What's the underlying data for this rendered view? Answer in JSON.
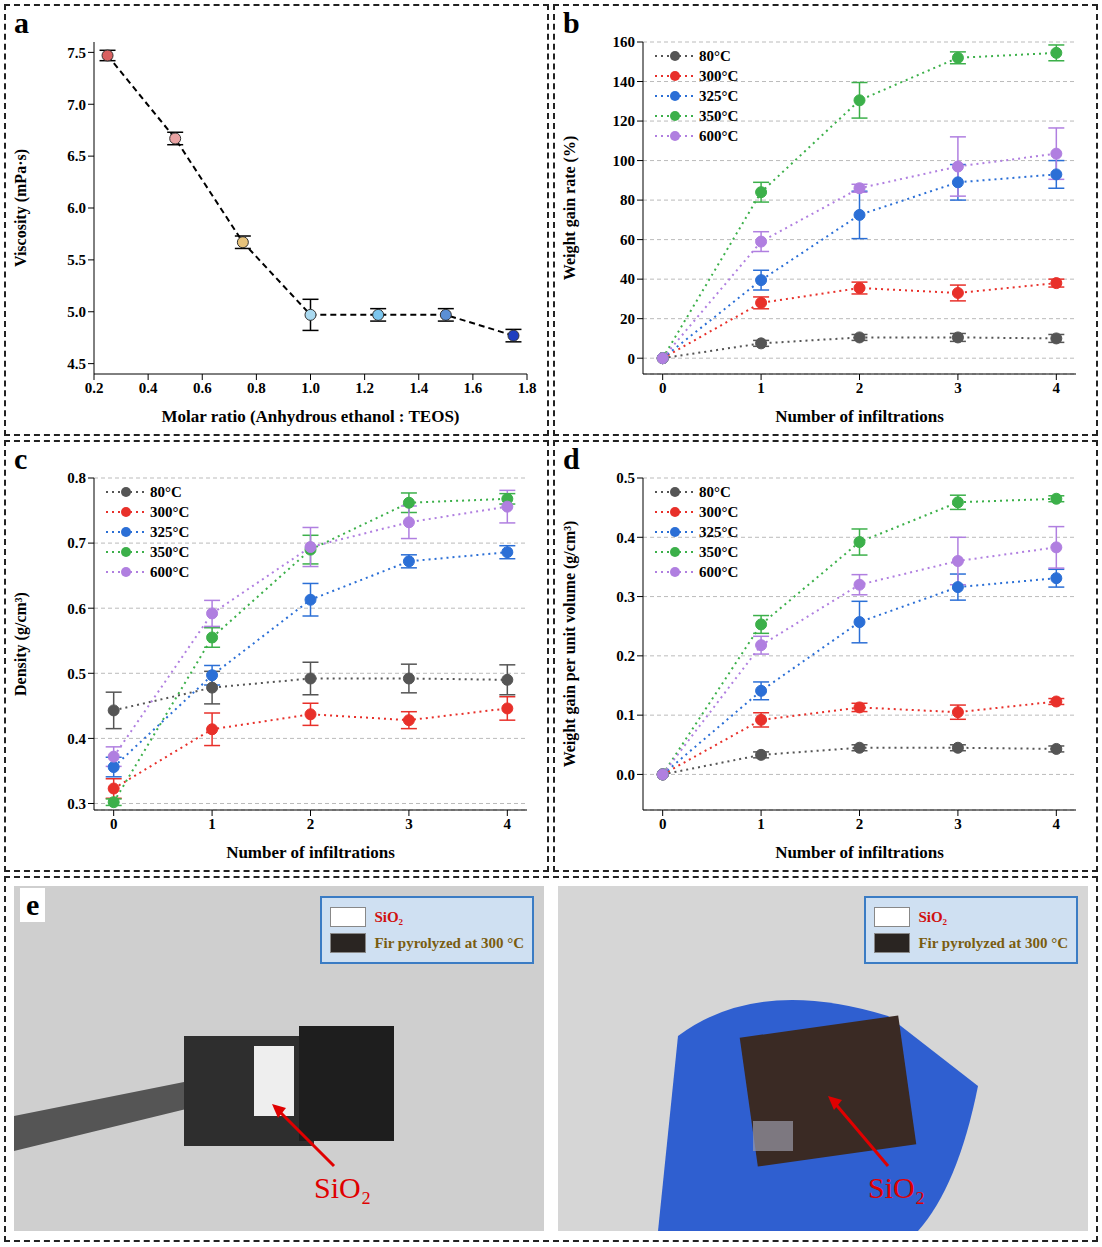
{
  "chart_data": [
    {
      "panel": "a",
      "type": "line",
      "x_label": "Molar ratio (Anhydrous ethanol : TEOS)",
      "y_label": "Viscosity (mPa·s)",
      "x": [
        0.25,
        0.5,
        0.75,
        1.0,
        1.25,
        1.5,
        1.75
      ],
      "series": [
        {
          "values": [
            7.47,
            6.67,
            5.67,
            4.97,
            4.97,
            4.97,
            4.77
          ],
          "errors": [
            0.05,
            0.06,
            0.06,
            0.15,
            0.06,
            0.06,
            0.06
          ],
          "color": "#000000",
          "line_style": "dashed",
          "marker": "circle",
          "colors": [
            "#d96060",
            "#eaa3a3",
            "#e6c27a",
            "#a9d9f0",
            "#7cc6ee",
            "#5b8fd5",
            "#1f3fbf"
          ]
        }
      ],
      "xlim": [
        0.2,
        1.8
      ],
      "xticks": [
        0.2,
        0.4,
        0.6,
        0.8,
        {
          "value": 1,
          "label": "1.0"
        },
        1.2,
        1.4,
        1.6,
        1.8
      ],
      "ylim": [
        4.4,
        7.6
      ],
      "yticks": [
        4.5,
        {
          "value": 5,
          "label": "5.0"
        },
        5.5,
        {
          "value": 6,
          "label": "6.0"
        },
        6.5,
        {
          "value": 7,
          "label": "7.0"
        },
        7.5
      ],
      "grid": false
    },
    {
      "panel": "b",
      "type": "line",
      "x_label": "Number of infiltrations",
      "y_label": "Weight gain rate (%)",
      "x": [
        0,
        1,
        2,
        3,
        4
      ],
      "series": [
        {
          "name": "80°C",
          "color": "#555555",
          "values": [
            0,
            7.5,
            10.5,
            10.5,
            10
          ],
          "errors": [
            0,
            1.5,
            1.5,
            2,
            2
          ],
          "line_style": "dotted",
          "marker": "circle"
        },
        {
          "name": "300°C",
          "color": "#e8302a",
          "values": [
            0,
            28,
            35.5,
            33,
            38
          ],
          "errors": [
            0,
            3,
            3,
            4,
            2
          ],
          "line_style": "dotted",
          "marker": "circle"
        },
        {
          "name": "325°C",
          "color": "#2b6fd6",
          "values": [
            0,
            39.5,
            72.5,
            89,
            93
          ],
          "errors": [
            0,
            5,
            12,
            9,
            7
          ],
          "line_style": "dotted",
          "marker": "circle"
        },
        {
          "name": "350°C",
          "color": "#3cb04a",
          "values": [
            0,
            84,
            130.5,
            152,
            154.5
          ],
          "errors": [
            0,
            5,
            9,
            3,
            4
          ],
          "line_style": "dotted",
          "marker": "circle"
        },
        {
          "name": "600°C",
          "color": "#b07fe0",
          "values": [
            0,
            59,
            86,
            97,
            103.5
          ],
          "errors": [
            0,
            5,
            2,
            15,
            13
          ],
          "line_style": "dotted",
          "marker": "circle"
        }
      ],
      "xlim": [
        -0.2,
        4.2
      ],
      "xticks": [
        0,
        1,
        2,
        3,
        4
      ],
      "ylim": [
        -8,
        160
      ],
      "yticks": [
        0,
        20,
        40,
        60,
        80,
        100,
        120,
        140,
        160
      ],
      "grid": true,
      "legend": "upper left"
    },
    {
      "panel": "c",
      "type": "line",
      "x_label": "Number of infiltrations",
      "y_label": "Density (g/cm³)",
      "x": [
        0,
        1,
        2,
        3,
        4
      ],
      "series": [
        {
          "name": "80°C",
          "color": "#555555",
          "values": [
            0.443,
            0.478,
            0.492,
            0.492,
            0.49
          ],
          "errors": [
            0.028,
            0.025,
            0.025,
            0.022,
            0.023
          ],
          "line_style": "dotted",
          "marker": "circle"
        },
        {
          "name": "300°C",
          "color": "#e8302a",
          "values": [
            0.323,
            0.414,
            0.437,
            0.428,
            0.446
          ],
          "errors": [
            0.015,
            0.025,
            0.017,
            0.013,
            0.018
          ],
          "line_style": "dotted",
          "marker": "circle"
        },
        {
          "name": "325°C",
          "color": "#2b6fd6",
          "values": [
            0.356,
            0.497,
            0.613,
            0.672,
            0.686
          ],
          "errors": [
            0.015,
            0.015,
            0.025,
            0.01,
            0.01
          ],
          "line_style": "dotted",
          "marker": "circle"
        },
        {
          "name": "350°C",
          "color": "#3cb04a",
          "values": [
            0.302,
            0.555,
            0.69,
            0.762,
            0.768
          ],
          "errors": [
            0.005,
            0.015,
            0.022,
            0.015,
            0.008
          ],
          "line_style": "dotted",
          "marker": "circle"
        },
        {
          "name": "600°C",
          "color": "#b07fe0",
          "values": [
            0.372,
            0.592,
            0.694,
            0.732,
            0.756
          ],
          "errors": [
            0.015,
            0.02,
            0.03,
            0.025,
            0.025
          ],
          "line_style": "dotted",
          "marker": "circle"
        }
      ],
      "xlim": [
        -0.2,
        4.2
      ],
      "xticks": [
        0,
        1,
        2,
        3,
        4
      ],
      "ylim": [
        0.29,
        0.8
      ],
      "yticks": [
        0.3,
        0.4,
        0.5,
        0.6,
        0.7,
        0.8
      ],
      "grid": true,
      "legend": "upper left"
    },
    {
      "panel": "d",
      "type": "line",
      "x_label": "Number of infiltrations",
      "y_label": "Weight gain per unit volume (g/cm³)",
      "x": [
        0,
        1,
        2,
        3,
        4
      ],
      "series": [
        {
          "name": "80°C",
          "color": "#555555",
          "values": [
            0,
            0.033,
            0.045,
            0.045,
            0.043
          ],
          "errors": [
            0,
            0.005,
            0.005,
            0.005,
            0.005
          ],
          "line_style": "dotted",
          "marker": "circle"
        },
        {
          "name": "300°C",
          "color": "#e8302a",
          "values": [
            0,
            0.092,
            0.113,
            0.105,
            0.123
          ],
          "errors": [
            0,
            0.012,
            0.007,
            0.012,
            0.005
          ],
          "line_style": "dotted",
          "marker": "circle"
        },
        {
          "name": "325°C",
          "color": "#2b6fd6",
          "values": [
            0,
            0.141,
            0.257,
            0.316,
            0.331
          ],
          "errors": [
            0,
            0.015,
            0.035,
            0.022,
            0.015
          ],
          "line_style": "dotted",
          "marker": "circle"
        },
        {
          "name": "350°C",
          "color": "#3cb04a",
          "values": [
            0,
            0.253,
            0.392,
            0.459,
            0.465
          ],
          "errors": [
            0,
            0.015,
            0.022,
            0.012,
            0.005
          ],
          "line_style": "dotted",
          "marker": "circle"
        },
        {
          "name": "600°C",
          "color": "#b07fe0",
          "values": [
            0,
            0.218,
            0.32,
            0.36,
            0.383
          ],
          "errors": [
            0,
            0.015,
            0.017,
            0.04,
            0.035
          ],
          "line_style": "dotted",
          "marker": "circle"
        }
      ],
      "xlim": [
        -0.2,
        4.2
      ],
      "xticks": [
        0,
        1,
        2,
        3,
        4
      ],
      "ylim": [
        -0.06,
        0.5
      ],
      "yticks": [
        {
          "value": 0,
          "label": "0.0"
        },
        0.1,
        0.2,
        0.3,
        0.4,
        0.5
      ],
      "grid": true,
      "legend": "upper left"
    }
  ],
  "photos": {
    "panel": "e",
    "items": [
      {
        "legend": [
          {
            "swatch": "#ffffff",
            "text": "SiO₂"
          },
          {
            "swatch": "#2a2522",
            "text": "Fir pyrolyzed at 300 °C"
          }
        ],
        "annotation": "SiO₂"
      },
      {
        "legend": [
          {
            "swatch": "#ffffff",
            "text": "SiO₂"
          },
          {
            "swatch": "#2a2522",
            "text": "Fir pyrolyzed at 300 °C"
          }
        ],
        "annotation": "SiO₂"
      }
    ]
  }
}
